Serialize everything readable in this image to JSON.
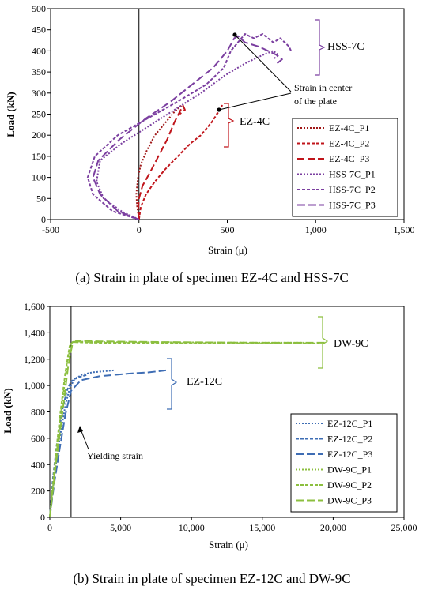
{
  "charts": [
    {
      "caption": "(a) Strain in plate of specimen EZ-4C and HSS-7C",
      "annotation": "Strain in center of the plate",
      "annotation_lines": [
        "Strain in center",
        "of the plate"
      ],
      "groups": [
        {
          "label": "HSS-7C",
          "color": "#7b3fa0"
        },
        {
          "label": "EZ-4C",
          "color": "#c0151b"
        }
      ]
    },
    {
      "caption": "(b) Strain in plate of specimen EZ-12C and DW-9C",
      "annotation": "Yielding strain",
      "groups": [
        {
          "label": "DW-9C",
          "color": "#8cbf3f"
        },
        {
          "label": "EZ-12C",
          "color": "#3e6db4"
        }
      ]
    }
  ],
  "chart_data": [
    {
      "type": "line",
      "xlabel": "Strain (μ)",
      "ylabel": "Load (kN)",
      "xlim": [
        -500,
        1500
      ],
      "ylim": [
        0,
        500
      ],
      "xticks": [
        -500,
        0,
        500,
        1000,
        1500
      ],
      "xtick_labels": [
        "-500",
        "0",
        "500",
        "1,000",
        "1,500"
      ],
      "yticks": [
        0,
        50,
        100,
        150,
        200,
        250,
        300,
        350,
        400,
        450,
        500
      ],
      "ytick_labels": [
        "0",
        "50",
        "100",
        "150",
        "200",
        "250",
        "300",
        "350",
        "400",
        "450",
        "500"
      ],
      "grid": false,
      "legend": "right",
      "series": [
        {
          "name": "EZ-4C_P1",
          "color": "#a01818",
          "dash": "2,2",
          "x": [
            0,
            -10,
            -15,
            -5,
            10,
            40,
            90,
            150,
            200,
            240
          ],
          "y": [
            0,
            30,
            60,
            100,
            130,
            160,
            200,
            230,
            255,
            270
          ]
        },
        {
          "name": "EZ-4C_P2",
          "color": "#c0151b",
          "dash": "4,2",
          "x": [
            0,
            10,
            40,
            90,
            150,
            220,
            290,
            350,
            410,
            450,
            470,
            440
          ],
          "y": [
            0,
            30,
            60,
            90,
            120,
            150,
            180,
            200,
            230,
            255,
            270,
            250
          ]
        },
        {
          "name": "EZ-4C_P3",
          "color": "#c0151b",
          "dash": "9,4",
          "x": [
            0,
            -5,
            0,
            20,
            60,
            110,
            160,
            200,
            230,
            250,
            260,
            230
          ],
          "y": [
            0,
            20,
            50,
            80,
            110,
            150,
            190,
            230,
            255,
            270,
            260,
            250
          ]
        },
        {
          "name": "HSS-7C_P1",
          "color": "#7b3fa0",
          "dash": "2,2",
          "x": [
            0,
            -100,
            -200,
            -240,
            -220,
            -100,
            50,
            200,
            350,
            480,
            600,
            700,
            760,
            790,
            760
          ],
          "y": [
            0,
            20,
            50,
            90,
            140,
            180,
            220,
            260,
            300,
            340,
            370,
            390,
            400,
            390,
            380
          ]
        },
        {
          "name": "HSS-7C_P2",
          "color": "#7b3fa0",
          "dash": "4,2",
          "x": [
            0,
            -150,
            -260,
            -290,
            -250,
            -120,
            50,
            220,
            380,
            480,
            520,
            560,
            600,
            650,
            700,
            760,
            800,
            850,
            860
          ],
          "y": [
            0,
            20,
            60,
            100,
            150,
            200,
            240,
            280,
            320,
            360,
            400,
            420,
            440,
            430,
            440,
            420,
            430,
            410,
            400
          ]
        },
        {
          "name": "HSS-7C_P3",
          "color": "#7b3fa0",
          "dash": "10,4",
          "x": [
            0,
            -120,
            -220,
            -260,
            -230,
            -110,
            40,
            180,
            300,
            420,
            500,
            540,
            560,
            600,
            680,
            780,
            810,
            780
          ],
          "y": [
            0,
            20,
            60,
            100,
            140,
            190,
            240,
            280,
            320,
            360,
            400,
            430,
            435,
            420,
            410,
            390,
            380,
            370
          ]
        }
      ]
    },
    {
      "type": "line",
      "xlabel": "Strain (μ)",
      "ylabel": "Load (kN)",
      "xlim": [
        0,
        25000
      ],
      "ylim": [
        0,
        1600
      ],
      "xticks": [
        0,
        5000,
        10000,
        15000,
        20000,
        25000
      ],
      "xtick_labels": [
        "0",
        "5,000",
        "10,000",
        "15,000",
        "20,000",
        "25,000"
      ],
      "yticks": [
        0,
        200,
        400,
        600,
        800,
        1000,
        1200,
        1400,
        1600
      ],
      "ytick_labels": [
        "0",
        "200",
        "400",
        "600",
        "800",
        "1,000",
        "1,200",
        "1,400",
        "1,600"
      ],
      "grid": false,
      "legend": "right",
      "yielding_strain": 1500,
      "series": [
        {
          "name": "EZ-12C_P1",
          "color": "#3e6db4",
          "dash": "2,2",
          "x": [
            0,
            300,
            700,
            1100,
            1400,
            1700,
            2200,
            3000,
            4000,
            4500
          ],
          "y": [
            0,
            300,
            600,
            850,
            980,
            1040,
            1080,
            1100,
            1110,
            1115
          ]
        },
        {
          "name": "EZ-12C_P2",
          "color": "#3e6db4",
          "dash": "4,2",
          "x": [
            0,
            200,
            500,
            900,
            1200,
            1500,
            1900,
            2600
          ],
          "y": [
            0,
            280,
            560,
            820,
            960,
            1030,
            1060,
            1080
          ]
        },
        {
          "name": "EZ-12C_P3",
          "color": "#3e6db4",
          "dash": "10,4",
          "x": [
            0,
            300,
            700,
            1100,
            1500,
            2200,
            3500,
            5500,
            7000,
            8200
          ],
          "y": [
            0,
            250,
            520,
            780,
            960,
            1040,
            1070,
            1090,
            1100,
            1115
          ]
        },
        {
          "name": "DW-9C_P1",
          "color": "#8cbf3f",
          "dash": "2,2",
          "x": [
            0,
            400,
            800,
            1200,
            1500,
            1700,
            3000,
            8000,
            15000,
            18000
          ],
          "y": [
            0,
            400,
            800,
            1150,
            1320,
            1335,
            1330,
            1328,
            1325,
            1325
          ]
        },
        {
          "name": "DW-9C_P2",
          "color": "#8cbf3f",
          "dash": "4,2",
          "x": [
            0,
            300,
            700,
            1100,
            1400,
            1600,
            3000,
            8000,
            14000,
            19000
          ],
          "y": [
            0,
            350,
            750,
            1100,
            1300,
            1330,
            1325,
            1322,
            1320,
            1320
          ]
        },
        {
          "name": "DW-9C_P3",
          "color": "#8cbf3f",
          "dash": "10,4",
          "x": [
            0,
            400,
            900,
            1300,
            1600,
            1900,
            3500,
            8000,
            15000,
            19500
          ],
          "y": [
            0,
            380,
            800,
            1150,
            1320,
            1340,
            1335,
            1330,
            1325,
            1325
          ]
        }
      ]
    }
  ]
}
